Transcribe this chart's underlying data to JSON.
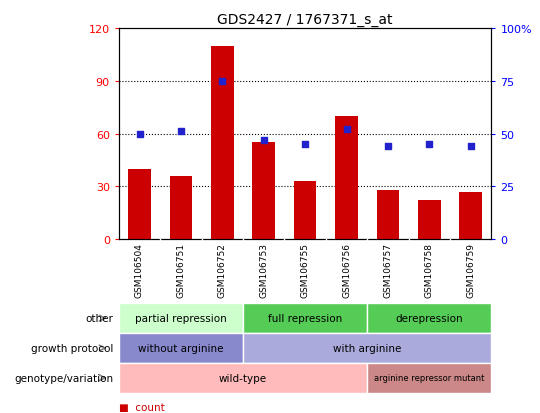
{
  "title": "GDS2427 / 1767371_s_at",
  "samples": [
    "GSM106504",
    "GSM106751",
    "GSM106752",
    "GSM106753",
    "GSM106755",
    "GSM106756",
    "GSM106757",
    "GSM106758",
    "GSM106759"
  ],
  "counts": [
    40,
    36,
    110,
    55,
    33,
    70,
    28,
    22,
    27
  ],
  "percentiles": [
    50,
    51,
    75,
    47,
    45,
    52,
    44,
    45,
    44
  ],
  "bar_color": "#cc0000",
  "dot_color": "#2222cc",
  "left_ylim": [
    0,
    120
  ],
  "left_yticks": [
    0,
    30,
    60,
    90,
    120
  ],
  "right_ylim": [
    0,
    100
  ],
  "right_yticks": [
    0,
    25,
    50,
    75,
    100
  ],
  "right_yticklabels": [
    "0",
    "25",
    "50",
    "75",
    "100%"
  ],
  "grid_values": [
    30,
    60,
    90
  ],
  "annotation_rows": [
    {
      "label": "other",
      "segments": [
        {
          "text": "partial repression",
          "start": 0,
          "end": 3,
          "color": "#ccffcc"
        },
        {
          "text": "full repression",
          "start": 3,
          "end": 6,
          "color": "#55cc55"
        },
        {
          "text": "derepression",
          "start": 6,
          "end": 9,
          "color": "#55cc55"
        }
      ]
    },
    {
      "label": "growth protocol",
      "segments": [
        {
          "text": "without arginine",
          "start": 0,
          "end": 3,
          "color": "#8888cc"
        },
        {
          "text": "with arginine",
          "start": 3,
          "end": 9,
          "color": "#aaaadd"
        }
      ]
    },
    {
      "label": "genotype/variation",
      "segments": [
        {
          "text": "wild-type",
          "start": 0,
          "end": 6,
          "color": "#ffbbbb"
        },
        {
          "text": "arginine repressor mutant",
          "start": 6,
          "end": 9,
          "color": "#cc8888"
        }
      ]
    }
  ],
  "xtick_bg_color": "#cccccc",
  "legend_count_color": "#cc0000",
  "legend_pct_color": "#2222cc"
}
